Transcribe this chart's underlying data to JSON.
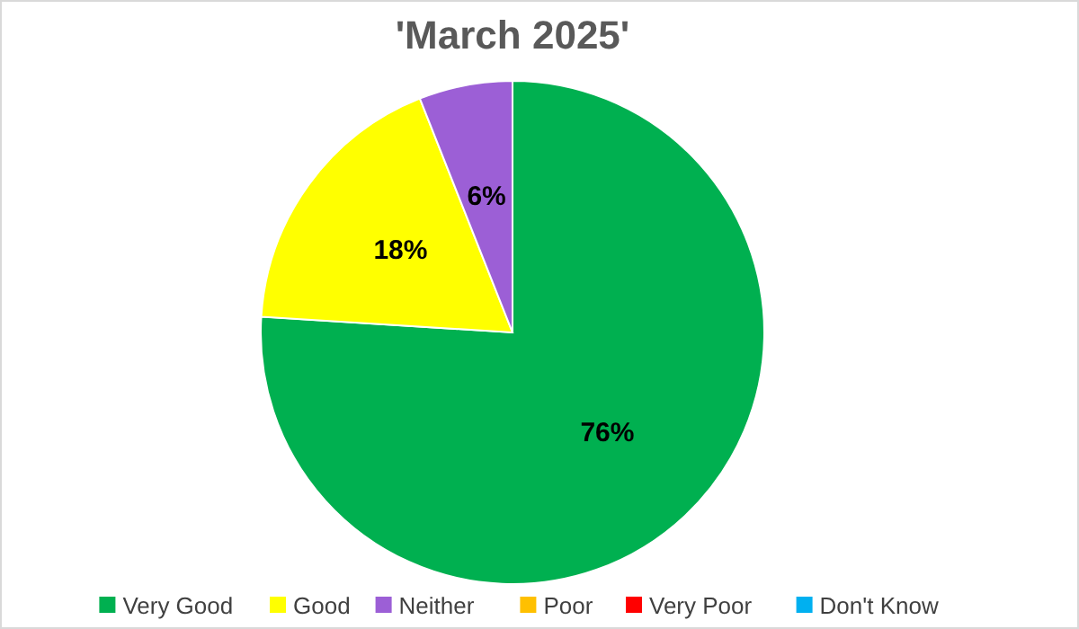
{
  "chart_data": {
    "type": "pie",
    "title": "'March 2025'",
    "categories": [
      "Very Good",
      "Good",
      "Neither",
      "Poor",
      "Very Poor",
      "Don't Know"
    ],
    "values": [
      76,
      18,
      6,
      0,
      0,
      0
    ],
    "colors": [
      "#00b050",
      "#ffff00",
      "#9c5fd6",
      "#ffc000",
      "#ff0000",
      "#00b0f0"
    ],
    "value_labels": [
      "76%",
      "18%",
      "6%",
      null,
      null,
      null
    ],
    "legend": "bottom"
  }
}
